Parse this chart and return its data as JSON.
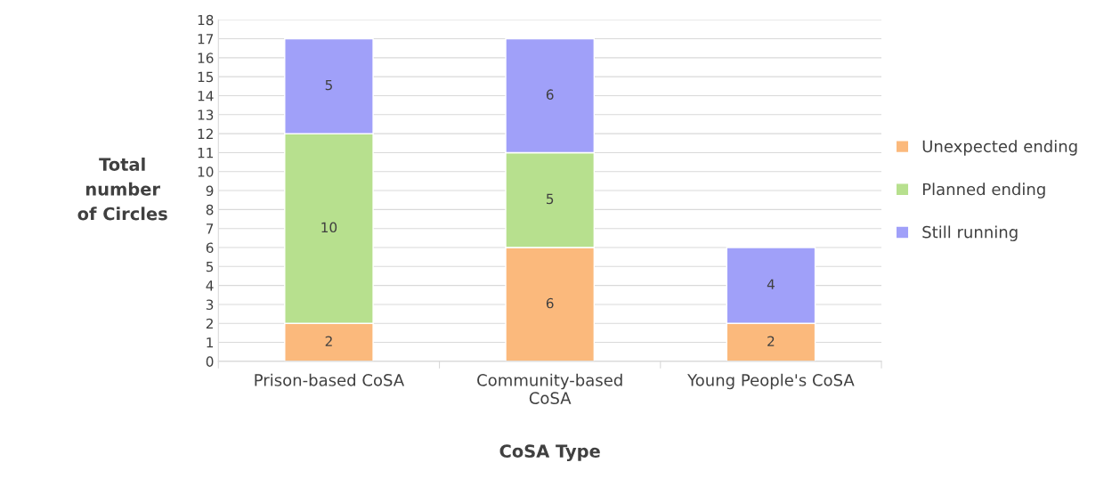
{
  "chart_data": {
    "type": "bar",
    "stacked": true,
    "xlabel": "CoSA Type",
    "ylabel": "Total\nnumber\nof Circles",
    "categories": [
      "Prison-based CoSA",
      "Community-based\nCoSA",
      "Young People's CoSA"
    ],
    "series": [
      {
        "name": "Unexpected ending",
        "color": "#fbb97c",
        "values": [
          2,
          6,
          2
        ],
        "value_labels": [
          "2",
          "6",
          "2"
        ]
      },
      {
        "name": "Planned ending",
        "color": "#b7e08e",
        "values": [
          10,
          5,
          0
        ],
        "value_labels": [
          "10",
          "5",
          null
        ]
      },
      {
        "name": "Still running",
        "color": "#a0a0f9",
        "values": [
          5,
          6,
          4
        ],
        "value_labels": [
          "5",
          "6",
          "4"
        ]
      }
    ],
    "ylim": [
      0,
      18
    ],
    "yticks": [
      0,
      1,
      2,
      3,
      4,
      5,
      6,
      7,
      8,
      9,
      10,
      11,
      12,
      13,
      14,
      15,
      16,
      17,
      18
    ],
    "grid": "y",
    "legend": "right"
  }
}
